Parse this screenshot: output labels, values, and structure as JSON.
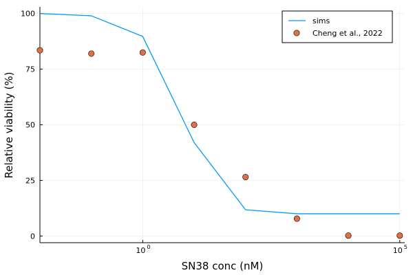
{
  "chart_data": {
    "type": "line",
    "title": "",
    "xlabel": "SN38 conc (nM)",
    "ylabel": "Relative viability (%)",
    "xscale": "log10",
    "xlim": [
      0.01,
      125000
    ],
    "ylim": [
      -3,
      103
    ],
    "grid": true,
    "legend_position": "top-right",
    "x_ticks": [
      {
        "value": 1,
        "base": "10",
        "exp": "0"
      },
      {
        "value": 100000,
        "base": "10",
        "exp": "5"
      }
    ],
    "y_ticks": [
      {
        "value": 0,
        "label": "0"
      },
      {
        "value": 25,
        "label": "25"
      },
      {
        "value": 50,
        "label": "50"
      },
      {
        "value": 75,
        "label": "75"
      },
      {
        "value": 100,
        "label": "100"
      }
    ],
    "series": [
      {
        "name": "sims",
        "kind": "line",
        "color": "#009AFA",
        "x": [
          0.01,
          0.1,
          1,
          10,
          100,
          1000,
          10000,
          100000
        ],
        "y": [
          100,
          99,
          89.7,
          42,
          11.8,
          10,
          10,
          10
        ]
      },
      {
        "name": "Cheng et al., 2022",
        "kind": "scatter",
        "color": "#E26F46",
        "x": [
          0.01,
          0.1,
          1,
          10,
          100,
          1000,
          10000,
          100000
        ],
        "y": [
          83.5,
          82,
          82.5,
          50,
          26.5,
          7.8,
          0.2,
          0.2
        ]
      }
    ]
  }
}
